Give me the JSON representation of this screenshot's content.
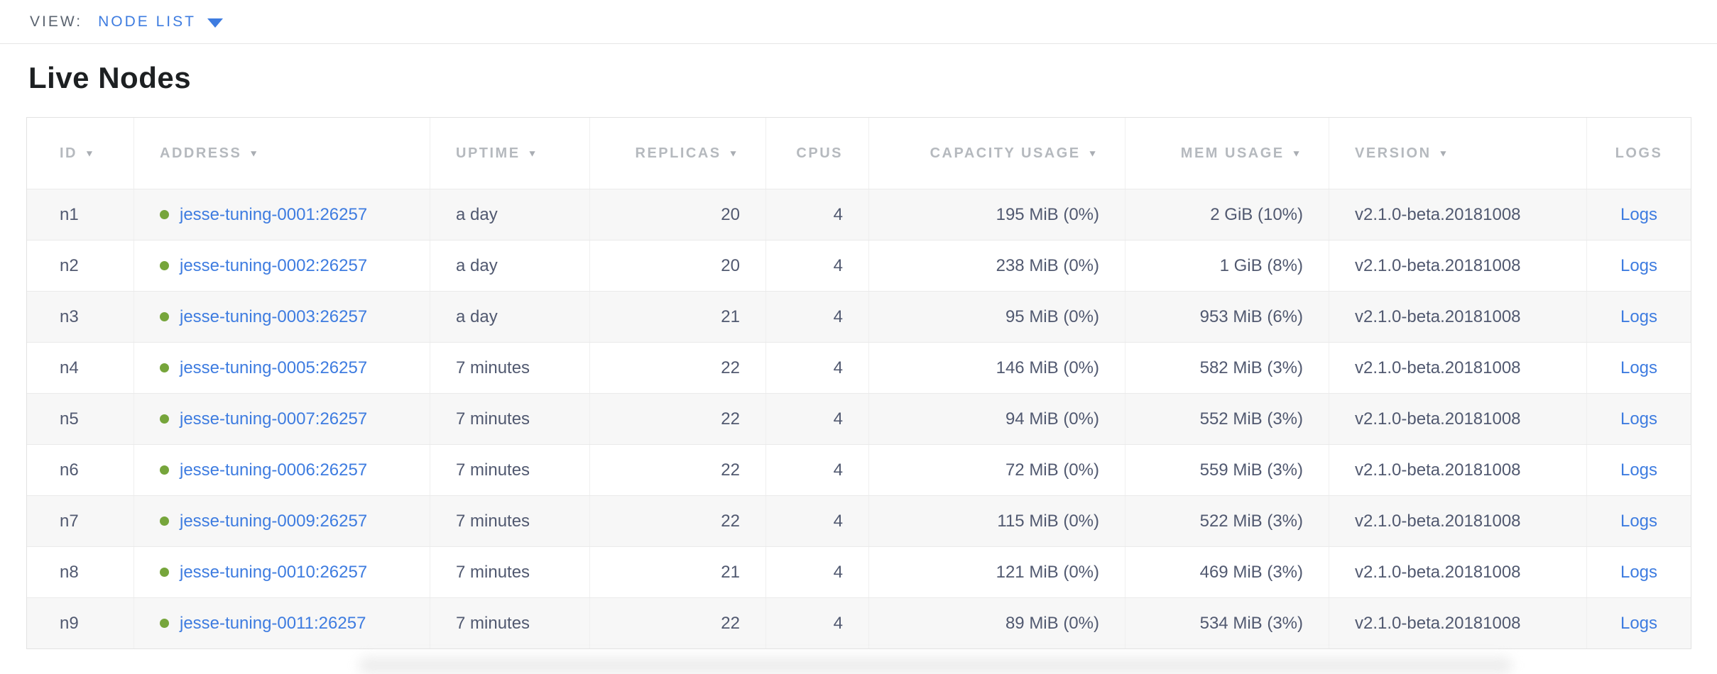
{
  "view_bar": {
    "label": "VIEW:",
    "selected_view": "NODE LIST"
  },
  "page": {
    "title": "Live Nodes"
  },
  "table": {
    "columns": [
      {
        "key": "id",
        "label": "ID",
        "sortable": true
      },
      {
        "key": "address",
        "label": "ADDRESS",
        "sortable": true
      },
      {
        "key": "uptime",
        "label": "UPTIME",
        "sortable": true
      },
      {
        "key": "replicas",
        "label": "REPLICAS",
        "sortable": true
      },
      {
        "key": "cpus",
        "label": "CPUS",
        "sortable": false
      },
      {
        "key": "capacity",
        "label": "CAPACITY USAGE",
        "sortable": true
      },
      {
        "key": "mem",
        "label": "MEM USAGE",
        "sortable": true
      },
      {
        "key": "version",
        "label": "VERSION",
        "sortable": true
      },
      {
        "key": "logs",
        "label": "LOGS",
        "sortable": false
      }
    ],
    "sort_arrow": "▼",
    "rows": [
      {
        "id": "n1",
        "status": "live",
        "address": "jesse-tuning-0001:26257",
        "uptime": "a day",
        "replicas": "20",
        "cpus": "4",
        "capacity": "195 MiB (0%)",
        "mem": "2 GiB (10%)",
        "version": "v2.1.0-beta.20181008",
        "logs": "Logs"
      },
      {
        "id": "n2",
        "status": "live",
        "address": "jesse-tuning-0002:26257",
        "uptime": "a day",
        "replicas": "20",
        "cpus": "4",
        "capacity": "238 MiB (0%)",
        "mem": "1 GiB (8%)",
        "version": "v2.1.0-beta.20181008",
        "logs": "Logs"
      },
      {
        "id": "n3",
        "status": "live",
        "address": "jesse-tuning-0003:26257",
        "uptime": "a day",
        "replicas": "21",
        "cpus": "4",
        "capacity": "95 MiB (0%)",
        "mem": "953 MiB (6%)",
        "version": "v2.1.0-beta.20181008",
        "logs": "Logs"
      },
      {
        "id": "n4",
        "status": "live",
        "address": "jesse-tuning-0005:26257",
        "uptime": "7 minutes",
        "replicas": "22",
        "cpus": "4",
        "capacity": "146 MiB (0%)",
        "mem": "582 MiB (3%)",
        "version": "v2.1.0-beta.20181008",
        "logs": "Logs"
      },
      {
        "id": "n5",
        "status": "live",
        "address": "jesse-tuning-0007:26257",
        "uptime": "7 minutes",
        "replicas": "22",
        "cpus": "4",
        "capacity": "94 MiB (0%)",
        "mem": "552 MiB (3%)",
        "version": "v2.1.0-beta.20181008",
        "logs": "Logs"
      },
      {
        "id": "n6",
        "status": "live",
        "address": "jesse-tuning-0006:26257",
        "uptime": "7 minutes",
        "replicas": "22",
        "cpus": "4",
        "capacity": "72 MiB (0%)",
        "mem": "559 MiB (3%)",
        "version": "v2.1.0-beta.20181008",
        "logs": "Logs"
      },
      {
        "id": "n7",
        "status": "live",
        "address": "jesse-tuning-0009:26257",
        "uptime": "7 minutes",
        "replicas": "22",
        "cpus": "4",
        "capacity": "115 MiB (0%)",
        "mem": "522 MiB (3%)",
        "version": "v2.1.0-beta.20181008",
        "logs": "Logs"
      },
      {
        "id": "n8",
        "status": "live",
        "address": "jesse-tuning-0010:26257",
        "uptime": "7 minutes",
        "replicas": "21",
        "cpus": "4",
        "capacity": "121 MiB (0%)",
        "mem": "469 MiB (3%)",
        "version": "v2.1.0-beta.20181008",
        "logs": "Logs"
      },
      {
        "id": "n9",
        "status": "live",
        "address": "jesse-tuning-0011:26257",
        "uptime": "7 minutes",
        "replicas": "22",
        "cpus": "4",
        "capacity": "89 MiB (0%)",
        "mem": "534 MiB (3%)",
        "version": "v2.1.0-beta.20181008",
        "logs": "Logs"
      }
    ]
  },
  "colors": {
    "accent_blue": "#3e7ce0",
    "live_status_green": "#76a53b",
    "header_text_gray": "#b5b9be",
    "cell_text_slate": "#515970",
    "row_stripe": "#f7f7f7",
    "border": "#e2e2e2"
  },
  "icons": {
    "chevron_down": "dropdown chevron for view selector",
    "sort_arrow_desc": "descending sort triangle on sortable columns",
    "live_node_dot": "green circle = node is live"
  }
}
